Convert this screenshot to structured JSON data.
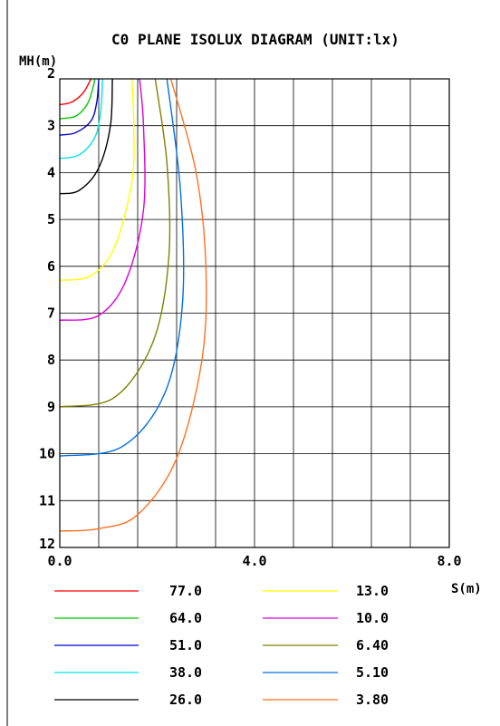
{
  "chart_data": {
    "type": "line",
    "title": "C0 PLANE ISOLUX DIAGRAM (UNIT:lx)",
    "ylabel": "MH(m)",
    "xlabel": "S(m)",
    "xlim": [
      0,
      10
    ],
    "ylim": [
      2,
      12
    ],
    "x_ticks": [
      {
        "value": 0,
        "label": "0.0"
      },
      {
        "value": 5,
        "label": "4.0"
      },
      {
        "value": 10,
        "label": "8.0"
      }
    ],
    "y_ticks": [
      {
        "value": 2,
        "label": "2"
      },
      {
        "value": 3,
        "label": "3"
      },
      {
        "value": 4,
        "label": "4"
      },
      {
        "value": 5,
        "label": "5"
      },
      {
        "value": 6,
        "label": "6"
      },
      {
        "value": 7,
        "label": "7"
      },
      {
        "value": 8,
        "label": "8"
      },
      {
        "value": 9,
        "label": "9"
      },
      {
        "value": 10,
        "label": "10"
      },
      {
        "value": 11,
        "label": "11"
      },
      {
        "value": 12,
        "label": "12"
      }
    ],
    "grid": true,
    "legend_position": "bottom",
    "series": [
      {
        "name": "77.0",
        "color": "#ff0000",
        "points": [
          [
            0,
            2.55
          ],
          [
            0.3,
            2.5
          ],
          [
            0.6,
            2.3
          ],
          [
            0.8,
            2.0
          ]
        ]
      },
      {
        "name": "64.0",
        "color": "#00cc00",
        "points": [
          [
            0,
            2.85
          ],
          [
            0.4,
            2.8
          ],
          [
            0.7,
            2.55
          ],
          [
            0.85,
            2.2
          ],
          [
            0.9,
            2.0
          ]
        ]
      },
      {
        "name": "51.0",
        "color": "#0000cc",
        "points": [
          [
            0,
            3.2
          ],
          [
            0.4,
            3.15
          ],
          [
            0.8,
            2.9
          ],
          [
            0.95,
            2.5
          ],
          [
            1.0,
            2.0
          ]
        ]
      },
      {
        "name": "38.0",
        "color": "#00e5e5",
        "points": [
          [
            0,
            3.7
          ],
          [
            0.5,
            3.62
          ],
          [
            0.9,
            3.25
          ],
          [
            1.05,
            2.7
          ],
          [
            1.1,
            2.0
          ]
        ]
      },
      {
        "name": "26.0",
        "color": "#000000",
        "points": [
          [
            0,
            4.45
          ],
          [
            0.5,
            4.38
          ],
          [
            1.0,
            3.9
          ],
          [
            1.3,
            3.0
          ],
          [
            1.35,
            2.0
          ]
        ]
      },
      {
        "name": "13.0",
        "color": "#ffff00",
        "points": [
          [
            0,
            6.3
          ],
          [
            0.8,
            6.2
          ],
          [
            1.4,
            5.6
          ],
          [
            1.85,
            4.2
          ],
          [
            1.9,
            3.0
          ],
          [
            1.85,
            2.0
          ]
        ]
      },
      {
        "name": "10.0",
        "color": "#dd00dd",
        "points": [
          [
            0,
            7.15
          ],
          [
            1.0,
            7.05
          ],
          [
            1.7,
            6.3
          ],
          [
            2.15,
            4.8
          ],
          [
            2.15,
            3.0
          ],
          [
            2.05,
            2.0
          ]
        ]
      },
      {
        "name": "6.40",
        "color": "#808000",
        "points": [
          [
            0,
            9.0
          ],
          [
            1.4,
            8.8
          ],
          [
            2.4,
            7.6
          ],
          [
            2.8,
            5.8
          ],
          [
            2.75,
            3.8
          ],
          [
            2.45,
            2.0
          ]
        ]
      },
      {
        "name": "5.10",
        "color": "#0070e0",
        "points": [
          [
            0,
            10.05
          ],
          [
            1.6,
            9.85
          ],
          [
            2.7,
            8.7
          ],
          [
            3.15,
            6.8
          ],
          [
            3.1,
            4.4
          ],
          [
            2.75,
            2.0
          ]
        ]
      },
      {
        "name": "3.80",
        "color": "#ff7020",
        "points": [
          [
            0,
            11.65
          ],
          [
            1.0,
            11.6
          ],
          [
            2.0,
            11.3
          ],
          [
            3.0,
            10.1
          ],
          [
            3.65,
            8.0
          ],
          [
            3.75,
            6.0
          ],
          [
            3.5,
            4.0
          ],
          [
            2.85,
            2.0
          ]
        ]
      }
    ]
  }
}
